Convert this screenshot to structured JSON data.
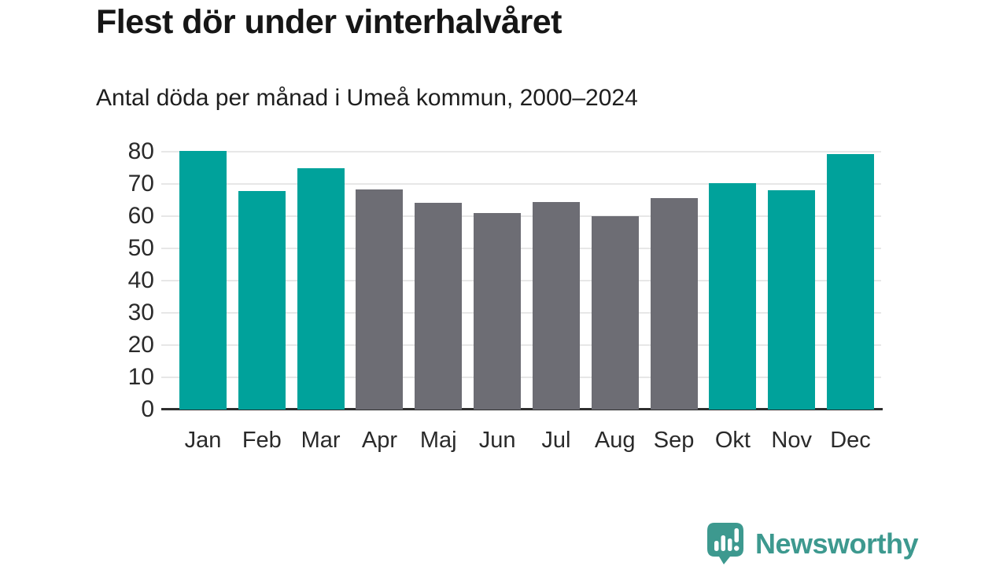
{
  "header": {
    "title": "Flest dör under vinterhalvåret",
    "subtitle": "Antal döda per månad i Umeå kommun, 2000–2024"
  },
  "chart_data": {
    "type": "bar",
    "title": "Flest dör under vinterhalvåret",
    "subtitle": "Antal döda per månad i Umeå kommun, 2000–2024",
    "categories": [
      "Jan",
      "Feb",
      "Mar",
      "Apr",
      "Maj",
      "Jun",
      "Jul",
      "Aug",
      "Sep",
      "Okt",
      "Nov",
      "Dec"
    ],
    "values": [
      80.2,
      67.7,
      74.8,
      68.3,
      64.1,
      61.0,
      64.4,
      60.0,
      65.7,
      70.3,
      68.0,
      79.2
    ],
    "bar_groups": [
      "winter",
      "winter",
      "winter",
      "summer",
      "summer",
      "summer",
      "summer",
      "summer",
      "summer",
      "winter",
      "winter",
      "winter"
    ],
    "colors": {
      "winter": "#00a29b",
      "summer": "#6d6d74"
    },
    "xlabel": "",
    "ylabel": "",
    "ylim": [
      0,
      80
    ],
    "yticks": [
      0,
      10,
      20,
      30,
      40,
      50,
      60,
      70,
      80
    ],
    "grid": true,
    "legend": false,
    "gridline_color": "#e7e7e7",
    "axis_color": "#2e2e2e"
  },
  "footer": {
    "brand": "Newsworthy",
    "brand_color": "#3d998f",
    "logo_icon": "speech-bubble-bar-chart-icon"
  }
}
